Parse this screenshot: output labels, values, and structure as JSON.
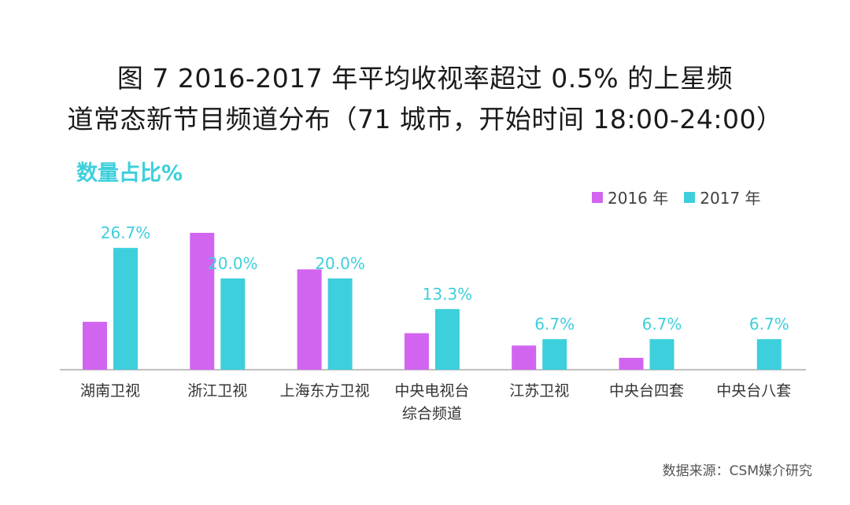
{
  "title_line1": "图 7  2016-2017 年平均收视率超过 0.5% 的上星频",
  "title_line2": "道常态新节目频道分布（71 城市，开始时间 18:00-24:00）",
  "ylabel": "数量占比%",
  "source": "数据来源：CSM媒介研究",
  "colors": {
    "s2016": "#d165f0",
    "s2017": "#3ecfdc"
  },
  "chart_data": {
    "type": "bar",
    "categories": [
      "湖南卫视",
      "浙江卫视",
      "上海东方卫视",
      "中央电视台\n综合频道",
      "江苏卫视",
      "中央台四套",
      "中央台八套"
    ],
    "series": [
      {
        "name": "2016 年",
        "values": [
          10.5,
          30.0,
          22.0,
          8.0,
          5.3,
          2.6,
          0
        ],
        "labels": [
          "",
          "",
          "",
          "",
          "",
          "",
          ""
        ]
      },
      {
        "name": "2017 年",
        "values": [
          26.7,
          20.0,
          20.0,
          13.3,
          6.7,
          6.7,
          6.7
        ],
        "labels": [
          "26.7%",
          "20.0%",
          "20.0%",
          "13.3%",
          "6.7%",
          "6.7%",
          "6.7%"
        ]
      }
    ],
    "ylim": [
      0,
      30
    ],
    "ylabel": "数量占比%",
    "legend_position": "top-right",
    "grid": false
  }
}
